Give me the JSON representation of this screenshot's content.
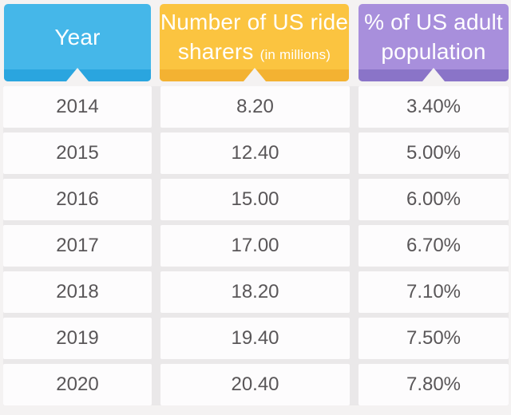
{
  "table": {
    "columns": [
      {
        "label": "Year",
        "color": "#45b7e9",
        "accent": "#2aa5df"
      },
      {
        "line1": "Number of US ride",
        "line2": "sharers",
        "sublabel": "(in millions)",
        "color": "#fbc440",
        "accent": "#f3b232"
      },
      {
        "line1": "% of US adult",
        "line2": "population",
        "color": "#a88fdc",
        "accent": "#8a74c8"
      }
    ],
    "rows": [
      {
        "year": "2014",
        "riders": "8.20",
        "pct": "3.40%"
      },
      {
        "year": "2015",
        "riders": "12.40",
        "pct": "5.00%"
      },
      {
        "year": "2016",
        "riders": "15.00",
        "pct": "6.00%"
      },
      {
        "year": "2017",
        "riders": "17.00",
        "pct": "6.70%"
      },
      {
        "year": "2018",
        "riders": "18.20",
        "pct": "7.10%"
      },
      {
        "year": "2019",
        "riders": "19.40",
        "pct": "7.50%"
      },
      {
        "year": "2020",
        "riders": "20.40",
        "pct": "7.80%"
      }
    ]
  },
  "chart_data": {
    "type": "table",
    "columns": [
      "Year",
      "Number of US ride sharers (in millions)",
      "% of US adult population"
    ],
    "rows": [
      [
        "2014",
        8.2,
        "3.40%"
      ],
      [
        "2015",
        12.4,
        "5.00%"
      ],
      [
        "2016",
        15.0,
        "6.00%"
      ],
      [
        "2017",
        17.0,
        "6.70%"
      ],
      [
        "2018",
        18.2,
        "7.10%"
      ],
      [
        "2019",
        19.4,
        "7.50%"
      ],
      [
        "2020",
        20.4,
        "7.80%"
      ]
    ],
    "header_colors": [
      "#45b7e9",
      "#fbc440",
      "#a88fdc"
    ],
    "header_accent_colors": [
      "#2aa5df",
      "#f3b232",
      "#8a74c8"
    ],
    "layout": {
      "grid": "off",
      "legend": "none"
    }
  }
}
